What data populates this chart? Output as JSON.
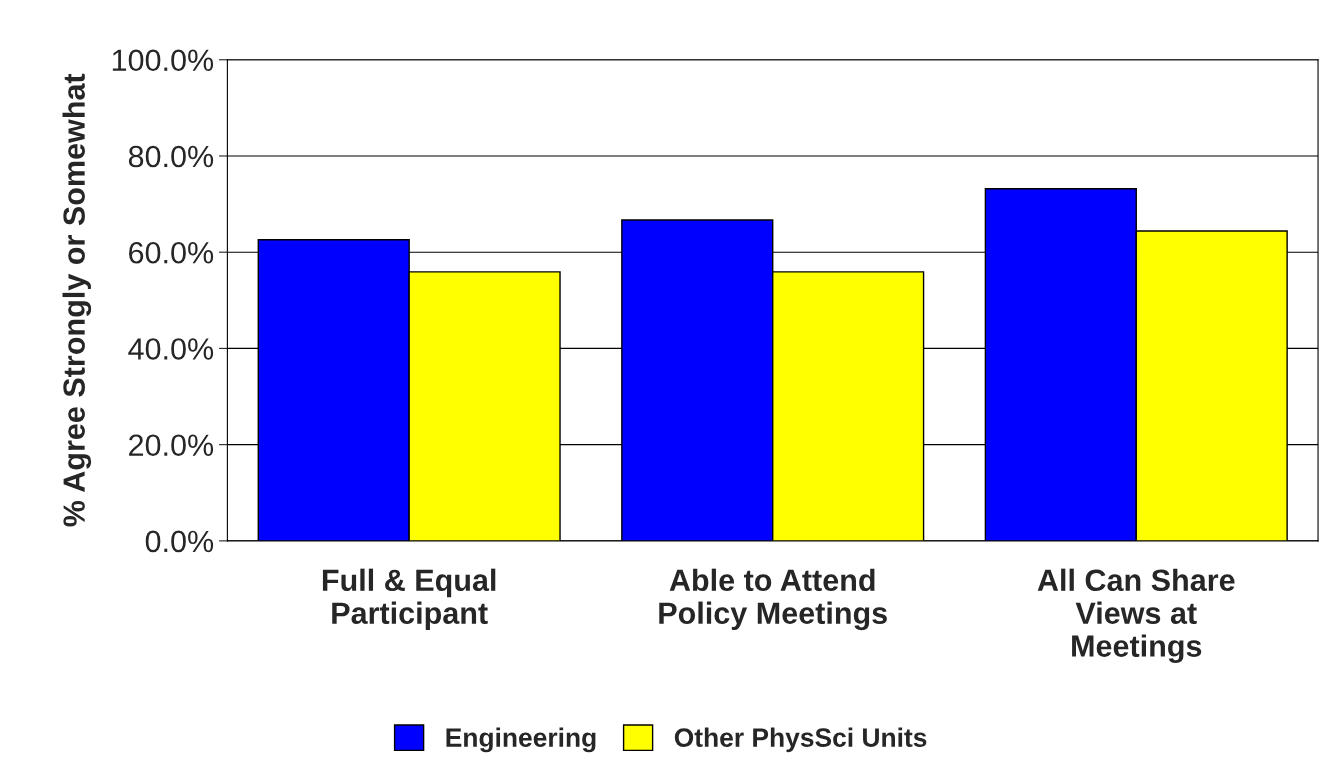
{
  "chart_data": {
    "type": "bar",
    "ylabel": "% Agree Strongly or Somewhat",
    "categories": [
      "Full & Equal\nParticipant",
      "Able to Attend\nPolicy Meetings",
      "All Can Share\nViews at\nMeetings"
    ],
    "series": [
      {
        "name": "Engineering",
        "color": "#0000ff",
        "values": [
          62.6,
          66.7,
          73.2
        ]
      },
      {
        "name": "Other PhysSci Units",
        "color": "#ffff00",
        "values": [
          55.9,
          55.9,
          64.4
        ]
      }
    ],
    "ylim": [
      0,
      100
    ],
    "yticks": [
      {
        "value": 0,
        "label": "0.0%"
      },
      {
        "value": 20,
        "label": "20.0%"
      },
      {
        "value": 40,
        "label": "40.0%"
      },
      {
        "value": 60,
        "label": "60.0%"
      },
      {
        "value": 80,
        "label": "80.0%"
      },
      {
        "value": 100,
        "label": "100.0%"
      }
    ],
    "grid": "y",
    "legend": "bottom"
  }
}
